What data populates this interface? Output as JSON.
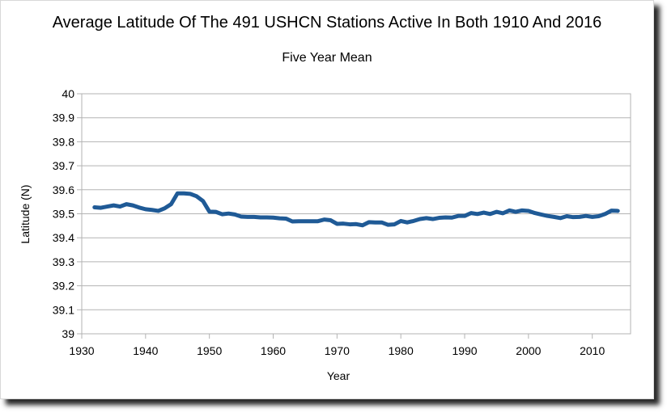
{
  "chart_data": {
    "type": "line",
    "title": "Average Latitude Of The 491 USHCN Stations Active In Both 1910 And 2016",
    "subtitle": "Five Year Mean",
    "xlabel": "Year",
    "ylabel": "Latitude (N)",
    "xlim": [
      1930,
      2016
    ],
    "ylim": [
      39,
      40
    ],
    "xticks": [
      "1930",
      "1940",
      "1950",
      "1960",
      "1970",
      "1980",
      "1990",
      "2000",
      "2010"
    ],
    "yticks": [
      "39",
      "39.1",
      "39.2",
      "39.3",
      "39.4",
      "39.5",
      "39.6",
      "39.7",
      "39.8",
      "39.9",
      "40"
    ],
    "grid": "horizontal",
    "line_color": "#1f5a96",
    "series": [
      {
        "x": [
          1932,
          1933,
          1934,
          1935,
          1936,
          1937,
          1938,
          1939,
          1940,
          1941,
          1942,
          1943,
          1944,
          1945,
          1946,
          1947,
          1948,
          1949,
          1950,
          1951,
          1952,
          1953,
          1954,
          1955,
          1956,
          1957,
          1958,
          1959,
          1960,
          1961,
          1962,
          1963,
          1964,
          1965,
          1966,
          1967,
          1968,
          1969,
          1970,
          1971,
          1972,
          1973,
          1974,
          1975,
          1976,
          1977,
          1978,
          1979,
          1980,
          1981,
          1982,
          1983,
          1984,
          1985,
          1986,
          1987,
          1988,
          1989,
          1990,
          1991,
          1992,
          1993,
          1994,
          1995,
          1996,
          1997,
          1998,
          1999,
          2000,
          2001,
          2002,
          2003,
          2004,
          2005,
          2006,
          2007,
          2008,
          2009,
          2010,
          2011,
          2012,
          2013,
          2014
        ],
        "values": [
          39.527,
          39.525,
          39.53,
          39.535,
          39.53,
          39.54,
          39.535,
          39.526,
          39.519,
          39.516,
          39.512,
          39.523,
          39.54,
          39.585,
          39.585,
          39.583,
          39.573,
          39.553,
          39.509,
          39.508,
          39.498,
          39.501,
          39.497,
          39.488,
          39.487,
          39.487,
          39.485,
          39.485,
          39.484,
          39.481,
          39.48,
          39.468,
          39.469,
          39.469,
          39.469,
          39.469,
          39.476,
          39.473,
          39.458,
          39.459,
          39.456,
          39.457,
          39.452,
          39.465,
          39.464,
          39.464,
          39.454,
          39.456,
          39.47,
          39.464,
          39.47,
          39.478,
          39.482,
          39.478,
          39.483,
          39.485,
          39.484,
          39.491,
          39.491,
          39.503,
          39.499,
          39.505,
          39.499,
          39.508,
          39.502,
          39.514,
          39.508,
          39.514,
          39.512,
          39.503,
          39.497,
          39.491,
          39.487,
          39.482,
          39.49,
          39.486,
          39.487,
          39.491,
          39.487,
          39.49,
          39.499,
          39.513,
          39.512
        ]
      }
    ]
  }
}
